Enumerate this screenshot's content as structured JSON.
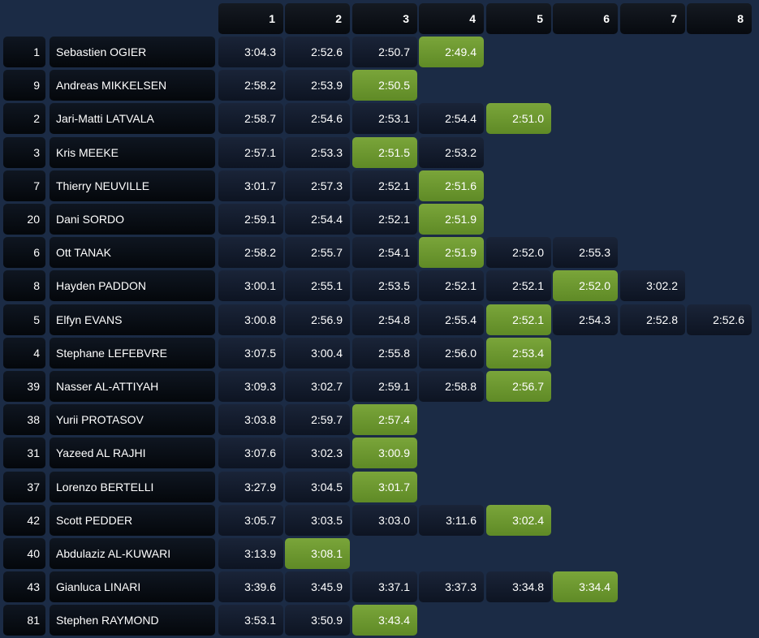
{
  "columns": [
    "1",
    "2",
    "3",
    "4",
    "5",
    "6",
    "7",
    "8"
  ],
  "highlight_color": "#6b9a2f",
  "rows": [
    {
      "pos": "1",
      "name": "Sebastien OGIER",
      "times": [
        "3:04.3",
        "2:52.6",
        "2:50.7",
        "2:49.4"
      ],
      "best": 3
    },
    {
      "pos": "9",
      "name": "Andreas MIKKELSEN",
      "times": [
        "2:58.2",
        "2:53.9",
        "2:50.5"
      ],
      "best": 2
    },
    {
      "pos": "2",
      "name": "Jari-Matti LATVALA",
      "times": [
        "2:58.7",
        "2:54.6",
        "2:53.1",
        "2:54.4",
        "2:51.0"
      ],
      "best": 4
    },
    {
      "pos": "3",
      "name": "Kris MEEKE",
      "times": [
        "2:57.1",
        "2:53.3",
        "2:51.5",
        "2:53.2"
      ],
      "best": 2
    },
    {
      "pos": "7",
      "name": "Thierry NEUVILLE",
      "times": [
        "3:01.7",
        "2:57.3",
        "2:52.1",
        "2:51.6"
      ],
      "best": 3
    },
    {
      "pos": "20",
      "name": "Dani SORDO",
      "times": [
        "2:59.1",
        "2:54.4",
        "2:52.1",
        "2:51.9"
      ],
      "best": 3
    },
    {
      "pos": "6",
      "name": "Ott TANAK",
      "times": [
        "2:58.2",
        "2:55.7",
        "2:54.1",
        "2:51.9",
        "2:52.0",
        "2:55.3"
      ],
      "best": 3
    },
    {
      "pos": "8",
      "name": "Hayden PADDON",
      "times": [
        "3:00.1",
        "2:55.1",
        "2:53.5",
        "2:52.1",
        "2:52.1",
        "2:52.0",
        "3:02.2"
      ],
      "best": 5
    },
    {
      "pos": "5",
      "name": "Elfyn EVANS",
      "times": [
        "3:00.8",
        "2:56.9",
        "2:54.8",
        "2:55.4",
        "2:52.1",
        "2:54.3",
        "2:52.8",
        "2:52.6"
      ],
      "best": 4
    },
    {
      "pos": "4",
      "name": "Stephane LEFEBVRE",
      "times": [
        "3:07.5",
        "3:00.4",
        "2:55.8",
        "2:56.0",
        "2:53.4"
      ],
      "best": 4
    },
    {
      "pos": "39",
      "name": "Nasser AL-ATTIYAH",
      "times": [
        "3:09.3",
        "3:02.7",
        "2:59.1",
        "2:58.8",
        "2:56.7"
      ],
      "best": 4
    },
    {
      "pos": "38",
      "name": "Yurii PROTASOV",
      "times": [
        "3:03.8",
        "2:59.7",
        "2:57.4"
      ],
      "best": 2
    },
    {
      "pos": "31",
      "name": "Yazeed AL RAJHI",
      "times": [
        "3:07.6",
        "3:02.3",
        "3:00.9"
      ],
      "best": 2
    },
    {
      "pos": "37",
      "name": "Lorenzo BERTELLI",
      "times": [
        "3:27.9",
        "3:04.5",
        "3:01.7"
      ],
      "best": 2
    },
    {
      "pos": "42",
      "name": "Scott PEDDER",
      "times": [
        "3:05.7",
        "3:03.5",
        "3:03.0",
        "3:11.6",
        "3:02.4"
      ],
      "best": 4
    },
    {
      "pos": "40",
      "name": "Abdulaziz AL-KUWARI",
      "times": [
        "3:13.9",
        "3:08.1"
      ],
      "best": 1
    },
    {
      "pos": "43",
      "name": "Gianluca LINARI",
      "times": [
        "3:39.6",
        "3:45.9",
        "3:37.1",
        "3:37.3",
        "3:34.8",
        "3:34.4"
      ],
      "best": 5
    },
    {
      "pos": "81",
      "name": "Stephen RAYMOND",
      "times": [
        "3:53.1",
        "3:50.9",
        "3:43.4"
      ],
      "best": 2
    }
  ]
}
